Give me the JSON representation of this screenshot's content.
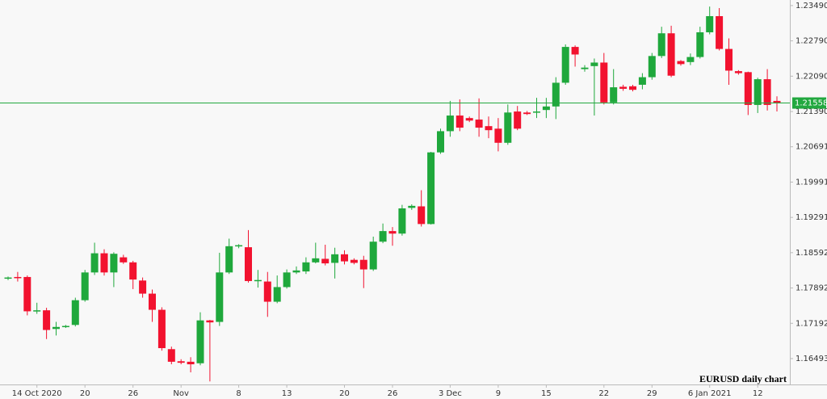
{
  "chart_data": {
    "type": "candlestick",
    "annotation": "EURUSD daily chart",
    "categories": [
      null,
      null,
      null,
      "14 Oct 2020",
      null,
      null,
      null,
      null,
      "20",
      null,
      null,
      null,
      null,
      "26",
      null,
      null,
      null,
      null,
      "Nov",
      null,
      null,
      null,
      null,
      null,
      "8",
      null,
      null,
      null,
      null,
      "13",
      null,
      null,
      null,
      null,
      null,
      "20",
      null,
      null,
      null,
      null,
      "26",
      null,
      null,
      null,
      null,
      null,
      "3 Dec",
      null,
      null,
      null,
      null,
      "9",
      null,
      null,
      null,
      null,
      "15",
      null,
      null,
      null,
      null,
      null,
      "22",
      null,
      null,
      null,
      null,
      "29",
      null,
      null,
      null,
      null,
      null,
      "6 Jan 2021",
      null,
      null,
      null,
      null,
      "12",
      null,
      null
    ],
    "open": [
      1.1808,
      1.1811,
      1.1811,
      1.1743,
      1.1745,
      1.1708,
      1.1713,
      1.1716,
      1.1765,
      1.182,
      1.1858,
      1.182,
      1.185,
      1.184,
      1.1804,
      1.1778,
      1.1746,
      1.1668,
      1.1644,
      1.1643,
      1.164,
      1.1725,
      1.1722,
      1.182,
      1.1872,
      1.187,
      1.1803,
      1.1802,
      1.1762,
      1.1791,
      1.182,
      1.1822,
      1.184,
      1.1847,
      1.1839,
      1.1856,
      1.1845,
      1.1845,
      1.1826,
      1.1881,
      1.1902,
      1.1897,
      1.1948,
      1.1951,
      1.1916,
      1.2058,
      1.21,
      1.2131,
      1.2126,
      1.2123,
      1.211,
      1.2105,
      1.2077,
      1.2139,
      1.2137,
      1.2137,
      1.2142,
      1.2149,
      1.2196,
      1.2267,
      1.2223,
      1.2229,
      1.2236,
      1.2157,
      1.2188,
      1.2189,
      1.2192,
      1.2207,
      1.2249,
      1.2294,
      1.2239,
      1.2237,
      1.2247,
      1.2296,
      1.2328,
      1.2263,
      1.2219,
      1.2217,
      1.2152,
      1.2203,
      1.216
    ],
    "high": [
      1.1812,
      1.1821,
      1.1814,
      1.176,
      1.175,
      1.1722,
      1.1716,
      1.177,
      1.1825,
      1.1879,
      1.1866,
      1.186,
      1.1855,
      1.1843,
      1.181,
      1.1786,
      1.1751,
      1.1673,
      1.1648,
      1.1652,
      1.1741,
      1.1726,
      1.1859,
      1.1887,
      1.1876,
      1.1904,
      1.1825,
      1.1821,
      1.1814,
      1.1826,
      1.1832,
      1.185,
      1.1879,
      1.1875,
      1.1869,
      1.1864,
      1.1848,
      1.1853,
      1.1891,
      1.1917,
      1.191,
      1.1954,
      1.1955,
      1.1983,
      1.2059,
      1.2105,
      1.216,
      1.2163,
      1.2129,
      1.2165,
      1.2129,
      1.2126,
      1.2153,
      1.215,
      1.214,
      1.2166,
      1.2166,
      1.2207,
      1.2272,
      1.227,
      1.2231,
      1.2244,
      1.2255,
      1.2223,
      1.2192,
      1.2192,
      1.2215,
      1.2255,
      1.2307,
      1.2309,
      1.2241,
      1.2254,
      1.2307,
      1.2347,
      1.2344,
      1.2284,
      1.2221,
      1.2218,
      1.2206,
      1.2223,
      1.2169
    ],
    "low": [
      1.1805,
      1.1802,
      1.1735,
      1.1738,
      1.1688,
      1.1695,
      1.171,
      1.1713,
      1.1762,
      1.1815,
      1.1814,
      1.1791,
      1.1837,
      1.1787,
      1.177,
      1.1722,
      1.1665,
      1.1638,
      1.1638,
      1.1622,
      1.1636,
      1.1604,
      1.1714,
      1.1817,
      1.1868,
      1.18,
      1.179,
      1.1732,
      1.1759,
      1.1788,
      1.1817,
      1.1817,
      1.1838,
      1.1834,
      1.1808,
      1.1836,
      1.1836,
      1.1789,
      1.1823,
      1.1878,
      1.1873,
      1.1893,
      1.1944,
      1.1911,
      1.1915,
      1.2055,
      1.2089,
      1.21,
      1.2118,
      1.2089,
      1.2086,
      1.206,
      1.2073,
      1.2102,
      1.2132,
      1.2126,
      1.2126,
      1.2124,
      1.2192,
      1.2228,
      1.2218,
      1.2131,
      1.2153,
      1.2153,
      1.218,
      1.2179,
      1.2183,
      1.2202,
      1.2245,
      1.2207,
      1.223,
      1.2231,
      1.2244,
      1.2292,
      1.226,
      1.2192,
      1.2212,
      1.2132,
      1.2136,
      1.2141,
      1.2139
    ],
    "close": [
      1.181,
      1.1809,
      1.1743,
      1.1745,
      1.1706,
      1.1712,
      1.1714,
      1.1765,
      1.182,
      1.1858,
      1.182,
      1.1857,
      1.184,
      1.1806,
      1.1778,
      1.1746,
      1.167,
      1.1643,
      1.1641,
      1.1638,
      1.1725,
      1.1721,
      1.182,
      1.1872,
      1.1874,
      1.1803,
      1.1805,
      1.1762,
      1.1791,
      1.182,
      1.1824,
      1.184,
      1.1848,
      1.1838,
      1.1856,
      1.1842,
      1.1839,
      1.1826,
      1.1881,
      1.1902,
      1.1897,
      1.1947,
      1.1952,
      1.1916,
      1.2058,
      1.21,
      1.2131,
      1.2107,
      1.2121,
      1.2107,
      1.2102,
      1.2077,
      1.2137,
      1.2105,
      1.2134,
      1.2139,
      1.2149,
      1.2196,
      1.2267,
      1.2252,
      1.2226,
      1.2236,
      1.2157,
      1.2187,
      1.2184,
      1.2182,
      1.2207,
      1.2249,
      1.2294,
      1.221,
      1.2233,
      1.2247,
      1.2296,
      1.2328,
      1.2263,
      1.222,
      1.2215,
      1.2152,
      1.2203,
      1.2152,
      1.21558
    ],
    "up_color": "#1fa83c",
    "down_color": "#f2122f",
    "last_price": 1.21558,
    "last_price_color": "#22a83f",
    "ylim": [
      1.1598,
      1.236
    ],
    "yticks": [
      {
        "value": 1.2349,
        "label": "1.23490"
      },
      {
        "value": 1.2279,
        "label": "1.22790"
      },
      {
        "value": 1.2209,
        "label": "1.22090"
      },
      {
        "value": 1.2139,
        "label": "1.21390"
      },
      {
        "value": 1.20691,
        "label": "1.20691"
      },
      {
        "value": 1.19991,
        "label": "1.19991"
      },
      {
        "value": 1.19291,
        "label": "1.19291"
      },
      {
        "value": 1.18592,
        "label": "1.18592"
      },
      {
        "value": 1.17892,
        "label": "1.17892"
      },
      {
        "value": 1.17192,
        "label": "1.17192"
      },
      {
        "value": 1.16493,
        "label": "1.16493"
      }
    ],
    "grid": false
  }
}
